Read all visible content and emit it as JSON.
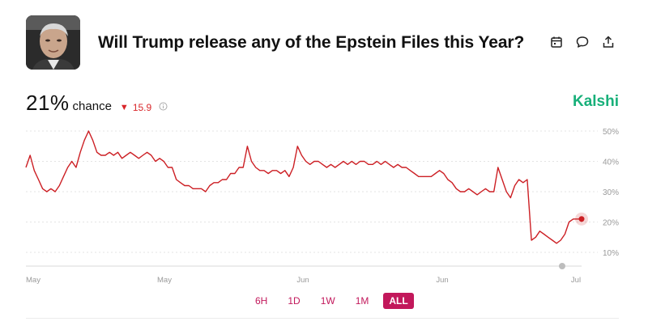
{
  "market": {
    "title": "Will Trump release any of the Epstein Files this Year?",
    "probability": "21%",
    "chance_label": "chance",
    "delta": "15.9",
    "delta_direction": "down",
    "brand": "Kalshi"
  },
  "header_icons": [
    "calendar-icon",
    "comment-icon",
    "share-icon"
  ],
  "colors": {
    "line": "#cc1f24",
    "brand": "#18b07a",
    "accent": "#c2185b",
    "down": "#d9262a"
  },
  "range_buttons": [
    {
      "label": "6H",
      "active": false
    },
    {
      "label": "1D",
      "active": false
    },
    {
      "label": "1W",
      "active": false
    },
    {
      "label": "1M",
      "active": false
    },
    {
      "label": "ALL",
      "active": true
    }
  ],
  "chart_data": {
    "type": "line",
    "ylim": [
      10,
      50
    ],
    "y_ticks": [
      "50%",
      "40%",
      "30%",
      "20%",
      "10%"
    ],
    "x_tick_labels": [
      "May",
      "May",
      "Jun",
      "Jun",
      "Jul"
    ],
    "grid": true,
    "series": [
      {
        "values": [
          38,
          42,
          37,
          34,
          31,
          30,
          31,
          30,
          32,
          35,
          38,
          40,
          38,
          43,
          47,
          50,
          47,
          43,
          42,
          42,
          43,
          42,
          43,
          41,
          42,
          43,
          42,
          41,
          42,
          43,
          42,
          40,
          41,
          40,
          38,
          38,
          34,
          33,
          32,
          32,
          31,
          31,
          31,
          30,
          32,
          33,
          33,
          34,
          34,
          36,
          36,
          38,
          38,
          45,
          40,
          38,
          37,
          37,
          36,
          37,
          37,
          36,
          37,
          35,
          38,
          45,
          42,
          40,
          39,
          40,
          40,
          39,
          38,
          39,
          38,
          39,
          40,
          39,
          40,
          39,
          40,
          40,
          39,
          39,
          40,
          39,
          40,
          39,
          38,
          39,
          38,
          38,
          37,
          36,
          35,
          35,
          35,
          35,
          36,
          37,
          36,
          34,
          33,
          31,
          30,
          30,
          31,
          30,
          29,
          30,
          31,
          30,
          30,
          38,
          34,
          30,
          28,
          32,
          34,
          33,
          34,
          14,
          15,
          17,
          16,
          15,
          14,
          13,
          14,
          16,
          20,
          21,
          21,
          21
        ]
      }
    ]
  }
}
